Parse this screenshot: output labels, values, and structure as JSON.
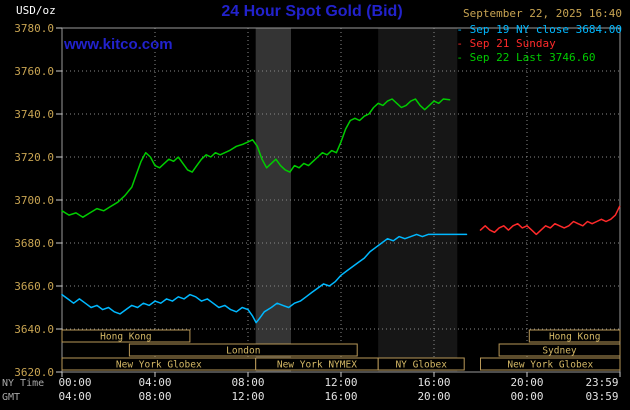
{
  "header": {
    "units_label": "USD/oz",
    "title": "24 Hour Spot Gold (Bid)",
    "datetime": "September 22, 2025 16:40",
    "watermark": "www.kitco.com"
  },
  "legend": [
    {
      "label": "- Sep 19 NY close 3684.00",
      "color": "#00b8ff"
    },
    {
      "label": "- Sep 21 Sunday",
      "color": "#ff2a2a"
    },
    {
      "label": "- Sep 22 Last 3746.60",
      "color": "#00cc00"
    }
  ],
  "chart_data": {
    "type": "line",
    "title": "24 Hour Spot Gold (Bid)",
    "ylabel": "USD/oz",
    "ylim": [
      3620,
      3780
    ],
    "grid": true,
    "y_ticks": [
      "3780.0",
      "3760.0",
      "3740.0",
      "3720.0",
      "3700.0",
      "3680.0",
      "3660.0",
      "3640.0",
      "3620.0"
    ],
    "x_axis": {
      "row1_name": "NY Time",
      "row2_name": "GMT",
      "ticks": [
        {
          "h": 0,
          "ny": "00:00",
          "gmt": "04:00"
        },
        {
          "h": 4,
          "ny": "04:00",
          "gmt": "08:00"
        },
        {
          "h": 8,
          "ny": "08:00",
          "gmt": "12:00"
        },
        {
          "h": 12,
          "ny": "12:00",
          "gmt": "16:00"
        },
        {
          "h": 16,
          "ny": "16:00",
          "gmt": "20:00"
        },
        {
          "h": 20,
          "ny": "20:00",
          "gmt": "00:00"
        },
        {
          "h": 24,
          "ny": "23:59",
          "gmt": "03:59"
        }
      ]
    },
    "bands": [
      {
        "start": 8.33,
        "end": 9.85,
        "color": "#343434"
      },
      {
        "start": 13.6,
        "end": 17.0,
        "color": "#161616"
      }
    ],
    "sessions": [
      {
        "row": 0,
        "start": 0,
        "end": 5.5,
        "label": "Hong Kong"
      },
      {
        "row": 0,
        "start": 20.1,
        "end": 24,
        "label": "Hong Kong"
      },
      {
        "row": 1,
        "start": 2.9,
        "end": 12.7,
        "label": "London"
      },
      {
        "row": 1,
        "start": 18.8,
        "end": 24,
        "label": "Sydney"
      },
      {
        "row": 2,
        "start": 0,
        "end": 8.33,
        "label": "New York Globex"
      },
      {
        "row": 2,
        "start": 8.33,
        "end": 13.6,
        "label": "New York NYMEX"
      },
      {
        "row": 2,
        "start": 13.6,
        "end": 17.3,
        "label": "NY Globex"
      },
      {
        "row": 2,
        "start": 18.0,
        "end": 24,
        "label": "New York Globex"
      }
    ],
    "series": [
      {
        "id": "sep19",
        "name": "Sep 19 NY close 3684.00",
        "color": "#00b8ff",
        "points": [
          [
            0,
            3656
          ],
          [
            0.25,
            3654
          ],
          [
            0.5,
            3652
          ],
          [
            0.75,
            3654
          ],
          [
            1,
            3652
          ],
          [
            1.25,
            3650
          ],
          [
            1.5,
            3651
          ],
          [
            1.75,
            3649
          ],
          [
            2,
            3650
          ],
          [
            2.25,
            3648
          ],
          [
            2.5,
            3647
          ],
          [
            2.75,
            3649
          ],
          [
            3,
            3651
          ],
          [
            3.25,
            3650
          ],
          [
            3.5,
            3652
          ],
          [
            3.75,
            3651
          ],
          [
            4,
            3653
          ],
          [
            4.25,
            3652
          ],
          [
            4.5,
            3654
          ],
          [
            4.75,
            3653
          ],
          [
            5,
            3655
          ],
          [
            5.25,
            3654
          ],
          [
            5.5,
            3656
          ],
          [
            5.75,
            3655
          ],
          [
            6,
            3653
          ],
          [
            6.25,
            3654
          ],
          [
            6.5,
            3652
          ],
          [
            6.75,
            3650
          ],
          [
            7,
            3651
          ],
          [
            7.25,
            3649
          ],
          [
            7.5,
            3648
          ],
          [
            7.75,
            3650
          ],
          [
            8,
            3649
          ],
          [
            8.2,
            3646
          ],
          [
            8.35,
            3643
          ],
          [
            8.5,
            3645
          ],
          [
            8.7,
            3648
          ],
          [
            9,
            3650
          ],
          [
            9.25,
            3652
          ],
          [
            9.5,
            3651
          ],
          [
            9.75,
            3650
          ],
          [
            10,
            3652
          ],
          [
            10.25,
            3653
          ],
          [
            10.5,
            3655
          ],
          [
            10.75,
            3657
          ],
          [
            11,
            3659
          ],
          [
            11.25,
            3661
          ],
          [
            11.5,
            3660
          ],
          [
            11.75,
            3662
          ],
          [
            12,
            3665
          ],
          [
            12.25,
            3667
          ],
          [
            12.5,
            3669
          ],
          [
            12.75,
            3671
          ],
          [
            13,
            3673
          ],
          [
            13.25,
            3676
          ],
          [
            13.5,
            3678
          ],
          [
            13.75,
            3680
          ],
          [
            14,
            3682
          ],
          [
            14.25,
            3681
          ],
          [
            14.5,
            3683
          ],
          [
            14.75,
            3682
          ],
          [
            15,
            3683
          ],
          [
            15.25,
            3684
          ],
          [
            15.5,
            3683
          ],
          [
            15.75,
            3684
          ],
          [
            16,
            3684
          ],
          [
            16.5,
            3684
          ],
          [
            17,
            3684
          ],
          [
            17.4,
            3684
          ]
        ]
      },
      {
        "id": "sep21",
        "name": "Sep 21 Sunday",
        "color": "#ff2a2a",
        "points": [
          [
            18,
            3686
          ],
          [
            18.2,
            3688
          ],
          [
            18.4,
            3686
          ],
          [
            18.6,
            3685
          ],
          [
            18.8,
            3687
          ],
          [
            19,
            3688
          ],
          [
            19.2,
            3686
          ],
          [
            19.4,
            3688
          ],
          [
            19.6,
            3689
          ],
          [
            19.8,
            3687
          ],
          [
            20,
            3688
          ],
          [
            20.2,
            3686
          ],
          [
            20.4,
            3684
          ],
          [
            20.6,
            3686
          ],
          [
            20.8,
            3688
          ],
          [
            21,
            3687
          ],
          [
            21.2,
            3689
          ],
          [
            21.4,
            3688
          ],
          [
            21.6,
            3687
          ],
          [
            21.8,
            3688
          ],
          [
            22,
            3690
          ],
          [
            22.2,
            3689
          ],
          [
            22.4,
            3688
          ],
          [
            22.6,
            3690
          ],
          [
            22.8,
            3689
          ],
          [
            23,
            3690
          ],
          [
            23.2,
            3691
          ],
          [
            23.4,
            3690
          ],
          [
            23.6,
            3691
          ],
          [
            23.8,
            3693
          ],
          [
            23.983,
            3697
          ]
        ]
      },
      {
        "id": "sep22",
        "name": "Sep 22 Last 3746.60",
        "color": "#00cc00",
        "points": [
          [
            0,
            3695
          ],
          [
            0.3,
            3693
          ],
          [
            0.6,
            3694
          ],
          [
            0.9,
            3692
          ],
          [
            1.2,
            3694
          ],
          [
            1.5,
            3696
          ],
          [
            1.8,
            3695
          ],
          [
            2.1,
            3697
          ],
          [
            2.4,
            3699
          ],
          [
            2.7,
            3702
          ],
          [
            3,
            3706
          ],
          [
            3.2,
            3712
          ],
          [
            3.4,
            3718
          ],
          [
            3.6,
            3722
          ],
          [
            3.8,
            3720
          ],
          [
            4,
            3716
          ],
          [
            4.2,
            3715
          ],
          [
            4.4,
            3717
          ],
          [
            4.6,
            3719
          ],
          [
            4.8,
            3718
          ],
          [
            5,
            3720
          ],
          [
            5.2,
            3717
          ],
          [
            5.4,
            3714
          ],
          [
            5.6,
            3713
          ],
          [
            5.8,
            3716
          ],
          [
            6,
            3719
          ],
          [
            6.2,
            3721
          ],
          [
            6.4,
            3720
          ],
          [
            6.6,
            3722
          ],
          [
            6.8,
            3721
          ],
          [
            7,
            3722
          ],
          [
            7.2,
            3723
          ],
          [
            7.5,
            3725
          ],
          [
            7.8,
            3726
          ],
          [
            8,
            3727
          ],
          [
            8.2,
            3728
          ],
          [
            8.4,
            3725
          ],
          [
            8.6,
            3719
          ],
          [
            8.8,
            3715
          ],
          [
            9,
            3717
          ],
          [
            9.2,
            3719
          ],
          [
            9.4,
            3716
          ],
          [
            9.6,
            3714
          ],
          [
            9.8,
            3713
          ],
          [
            10,
            3716
          ],
          [
            10.2,
            3715
          ],
          [
            10.4,
            3717
          ],
          [
            10.6,
            3716
          ],
          [
            10.8,
            3718
          ],
          [
            11,
            3720
          ],
          [
            11.2,
            3722
          ],
          [
            11.4,
            3721
          ],
          [
            11.6,
            3723
          ],
          [
            11.8,
            3722
          ],
          [
            12,
            3727
          ],
          [
            12.2,
            3733
          ],
          [
            12.4,
            3737
          ],
          [
            12.6,
            3738
          ],
          [
            12.8,
            3737
          ],
          [
            13,
            3739
          ],
          [
            13.2,
            3740
          ],
          [
            13.4,
            3743
          ],
          [
            13.6,
            3745
          ],
          [
            13.8,
            3744
          ],
          [
            14,
            3746
          ],
          [
            14.2,
            3747
          ],
          [
            14.4,
            3745
          ],
          [
            14.6,
            3743
          ],
          [
            14.8,
            3744
          ],
          [
            15,
            3746
          ],
          [
            15.2,
            3747
          ],
          [
            15.4,
            3744
          ],
          [
            15.6,
            3742
          ],
          [
            15.8,
            3744
          ],
          [
            16,
            3746
          ],
          [
            16.2,
            3745
          ],
          [
            16.4,
            3747
          ],
          [
            16.67,
            3746.6
          ]
        ]
      }
    ],
    "colors": {
      "grid": "#8a8a8a",
      "border": "#9a9a9a",
      "tick": "#cccccc",
      "axis_values": "#c8a452",
      "axis_times": "#e2e2e2",
      "axis_names": "#a8a8a8",
      "session_box": "#b89858",
      "session_text": "#d4b866"
    }
  }
}
